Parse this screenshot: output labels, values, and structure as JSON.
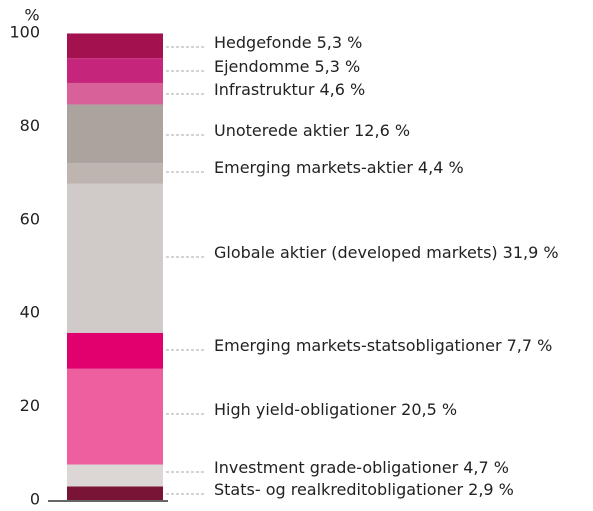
{
  "chart_data": {
    "type": "stacked-bar",
    "y_label": "%",
    "ylim": [
      0,
      100
    ],
    "yticks": [
      0,
      20,
      40,
      60,
      80,
      100
    ],
    "series": [
      {
        "name": "Stats- og realkreditobligationer",
        "color": "#7a1436",
        "values": [
          2.9
        ],
        "value_labels": [
          "2,9 %"
        ]
      },
      {
        "name": "Investment grade-obligationer",
        "color": "#dcd7d5",
        "values": [
          4.7
        ],
        "value_labels": [
          "4,7 %"
        ]
      },
      {
        "name": "High yield-obligationer",
        "color": "#ee5fa0",
        "values": [
          20.5
        ],
        "value_labels": [
          "20,5 %"
        ]
      },
      {
        "name": "Emerging markets-statsobligationer",
        "color": "#e0006e",
        "values": [
          7.7
        ],
        "value_labels": [
          "7,7 %"
        ]
      },
      {
        "name": "Globale aktier (developed markets)",
        "color": "#d0cbc8",
        "values": [
          31.9
        ],
        "value_labels": [
          "31,9 %"
        ]
      },
      {
        "name": "Emerging markets-aktier",
        "color": "#bfb5b0",
        "values": [
          4.4
        ],
        "value_labels": [
          "4,4 %"
        ]
      },
      {
        "name": "Unoterede aktier",
        "color": "#aba39e",
        "values": [
          12.6
        ],
        "value_labels": [
          "12,6 %"
        ]
      },
      {
        "name": "Infrastruktur",
        "color": "#d8619a",
        "values": [
          4.6
        ],
        "value_labels": [
          "4,6 %"
        ]
      },
      {
        "name": "Ejendomme",
        "color": "#c5257a",
        "values": [
          5.3
        ],
        "value_labels": [
          "5,3 %"
        ]
      },
      {
        "name": "Hedgefonde",
        "color": "#a3124e",
        "values": [
          5.3
        ],
        "value_labels": [
          "5,3 %"
        ]
      }
    ]
  }
}
